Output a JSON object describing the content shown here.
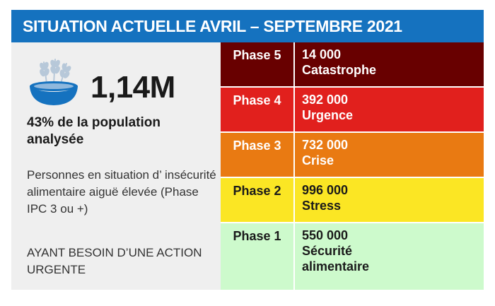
{
  "header": {
    "title": "SITUATION ACTUELLE AVRIL – SEPTEMBRE 2021"
  },
  "summary": {
    "icon": "grain-bowl-icon",
    "total": "1,14M",
    "population_share": "43% de la population analysée",
    "description": "Personnes en situation d’ insécurité alimentaire aiguë élevée (Phase IPC 3 ou +)",
    "action_note": "AYANT BESOIN D’UNE ACTION URGENTE"
  },
  "phases": [
    {
      "label": "Phase 5",
      "count": "14 000",
      "name": "Catastrophe",
      "bg": "#680000",
      "fg": "#ffffff"
    },
    {
      "label": "Phase 4",
      "count": "392 000",
      "name": "Urgence",
      "bg": "#e1201d",
      "fg": "#ffffff"
    },
    {
      "label": "Phase 3",
      "count": "732 000",
      "name": "Crise",
      "bg": "#e97a12",
      "fg": "#ffffff"
    },
    {
      "label": "Phase 2",
      "count": "996 000",
      "name": "Stress",
      "bg": "#fbe624",
      "fg": "#1a1a1a"
    },
    {
      "label": "Phase 1",
      "count": "550 000",
      "name": "Sécurité alimentaire",
      "bg": "#cdfacc",
      "fg": "#1a1a1a"
    }
  ],
  "colors": {
    "banner": "#1572bf",
    "panel": "#efefef",
    "icon": "#1572bf",
    "grain": "#b7c8d9"
  }
}
